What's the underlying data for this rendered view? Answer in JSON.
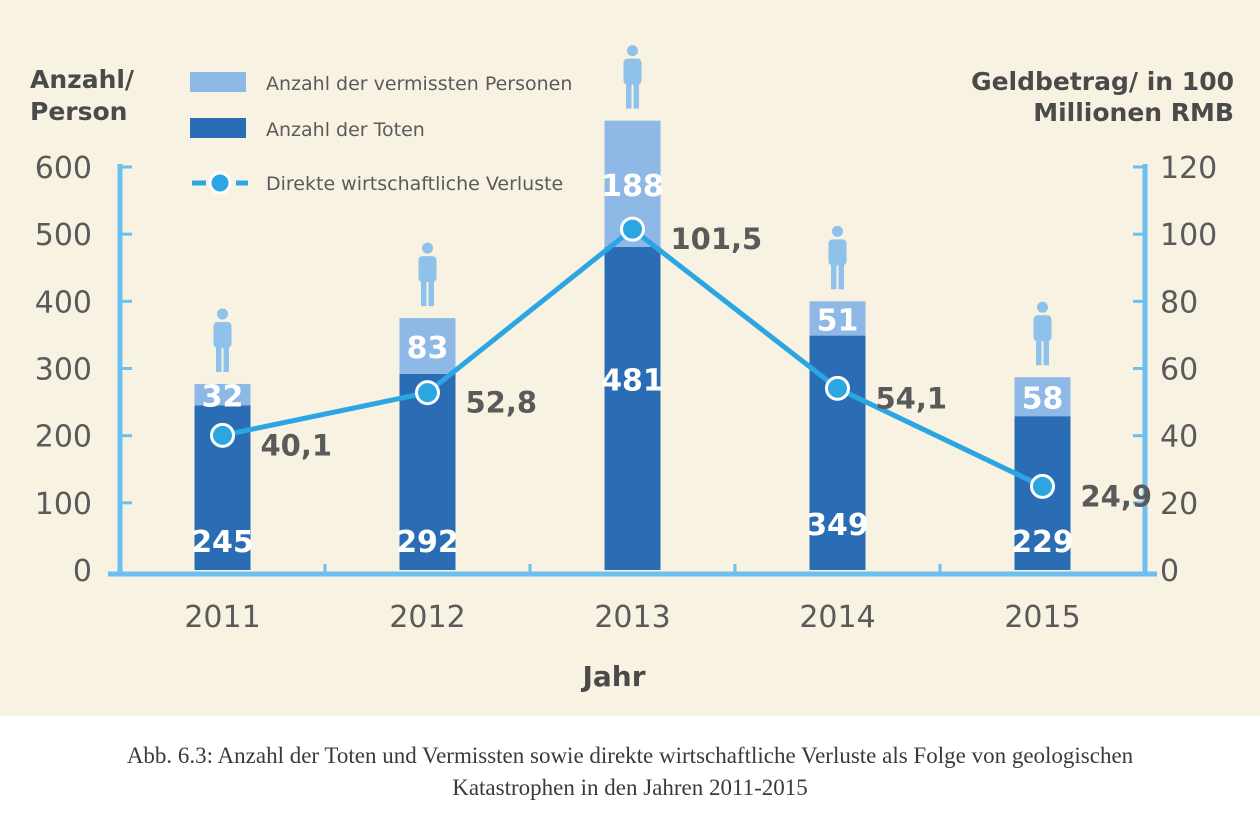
{
  "chart_data": {
    "type": "bar",
    "stacked": true,
    "categories": [
      "2011",
      "2012",
      "2013",
      "2014",
      "2015"
    ],
    "series": [
      {
        "name": "Anzahl der Toten",
        "values": [
          245,
          292,
          481,
          349,
          229
        ],
        "color": "#2a6db5"
      },
      {
        "name": "Anzahl der vermissten Personen",
        "values": [
          32,
          83,
          188,
          51,
          58
        ],
        "color": "#8eb8e6"
      }
    ],
    "line_series": {
      "name": "Direkte wirtschaftliche Verluste",
      "values": [
        40.1,
        52.8,
        101.5,
        54.1,
        24.9
      ],
      "labels": [
        "40,1",
        "52,8",
        "101,5",
        "54,1",
        "24,9"
      ],
      "color": "#2ba6e3",
      "axis": "right"
    },
    "ylim": [
      0,
      600
    ],
    "y2lim": [
      0,
      120
    ],
    "yticks": [
      0,
      100,
      200,
      300,
      400,
      500,
      600
    ],
    "y2ticks": [
      0,
      20,
      40,
      60,
      80,
      100,
      120
    ],
    "ylabel": [
      "Anzahl/",
      "Person"
    ],
    "y2label": [
      "Geldbetrag/ in 100",
      "Millionen RMB"
    ],
    "xlabel": "Jahr",
    "legend_position": "top-center",
    "person_icon": "person-icon"
  },
  "caption": {
    "line1": "Abb. 6.3: Anzahl der Toten und Vermissten sowie direkte wirtschaftliche Verluste als Folge von geologischen",
    "line2": "Katastrophen in den Jahren 2011-2015"
  }
}
